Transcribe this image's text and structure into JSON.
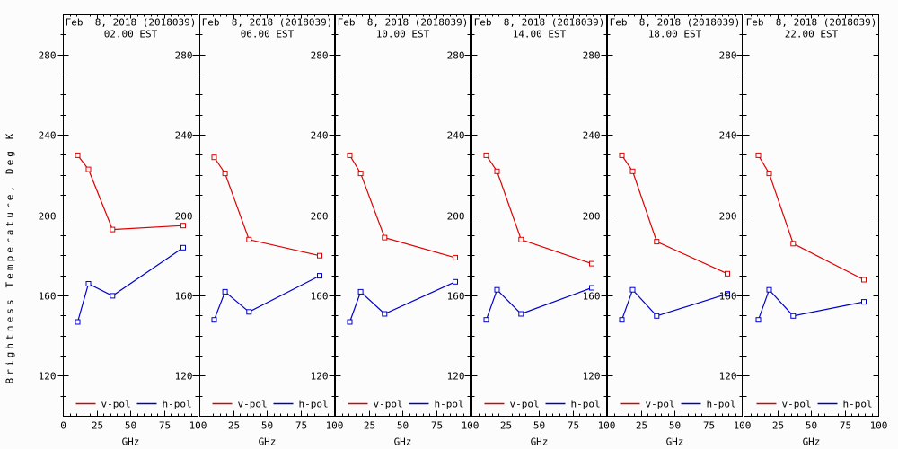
{
  "chart_data": {
    "type": "line",
    "title": "Feb  8, 2018 (2018039)",
    "ylabel": "Brightness Temperature, Deg K",
    "xlabel": "GHz",
    "x": [
      10.65,
      18.7,
      36.5,
      89.0
    ],
    "xlim": [
      0,
      100
    ],
    "ylim": [
      100,
      300
    ],
    "xticks": [
      0,
      25,
      50,
      75,
      100
    ],
    "yticks": [
      120,
      160,
      200,
      240,
      280
    ],
    "xtick_minor_step": 5,
    "ytick_minor_step": 10,
    "grid": false,
    "legend": {
      "position": "bottom-inside-each-panel",
      "entries": [
        {
          "label": "v-pol",
          "color": "#dd0000"
        },
        {
          "label": "h-pol",
          "color": "#0000cc"
        }
      ]
    },
    "colors": {
      "background": "#fcfcfc",
      "axis": "#000000",
      "text": "#000000",
      "v_pol": "#dd0000",
      "h_pol": "#0000cc"
    },
    "panels": [
      {
        "time": "02.00 EST",
        "series": [
          {
            "name": "v-pol",
            "color": "#dd0000",
            "values": [
              230,
              223,
              193,
              195
            ]
          },
          {
            "name": "h-pol",
            "color": "#0000cc",
            "values": [
              147,
              166,
              160,
              184
            ]
          }
        ]
      },
      {
        "time": "06.00 EST",
        "series": [
          {
            "name": "v-pol",
            "color": "#dd0000",
            "values": [
              229,
              221,
              188,
              180
            ]
          },
          {
            "name": "h-pol",
            "color": "#0000cc",
            "values": [
              148,
              162,
              152,
              170
            ]
          }
        ]
      },
      {
        "time": "10.00 EST",
        "series": [
          {
            "name": "v-pol",
            "color": "#dd0000",
            "values": [
              230,
              221,
              189,
              179
            ]
          },
          {
            "name": "h-pol",
            "color": "#0000cc",
            "values": [
              147,
              162,
              151,
              167
            ]
          }
        ]
      },
      {
        "time": "14.00 EST",
        "series": [
          {
            "name": "v-pol",
            "color": "#dd0000",
            "values": [
              230,
              222,
              188,
              176
            ]
          },
          {
            "name": "h-pol",
            "color": "#0000cc",
            "values": [
              148,
              163,
              151,
              164
            ]
          }
        ]
      },
      {
        "time": "18.00 EST",
        "series": [
          {
            "name": "v-pol",
            "color": "#dd0000",
            "values": [
              230,
              222,
              187,
              171
            ]
          },
          {
            "name": "h-pol",
            "color": "#0000cc",
            "values": [
              148,
              163,
              150,
              161
            ]
          }
        ]
      },
      {
        "time": "22.00 EST",
        "series": [
          {
            "name": "v-pol",
            "color": "#dd0000",
            "values": [
              230,
              221,
              186,
              168
            ]
          },
          {
            "name": "h-pol",
            "color": "#0000cc",
            "values": [
              148,
              163,
              150,
              157
            ]
          }
        ]
      }
    ]
  }
}
